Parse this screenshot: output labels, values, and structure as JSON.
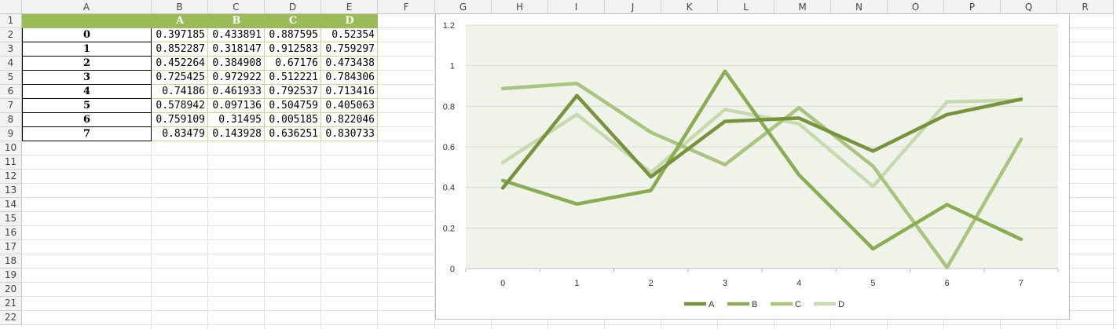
{
  "sheet": {
    "columns": [
      "A",
      "B",
      "C",
      "D",
      "E",
      "F",
      "G",
      "H",
      "I",
      "J",
      "K",
      "L",
      "M",
      "N",
      "O",
      "P",
      "Q",
      "R"
    ],
    "rows": [
      "1",
      "2",
      "3",
      "4",
      "5",
      "6",
      "7",
      "8",
      "9",
      "10",
      "11",
      "12",
      "13",
      "14",
      "15",
      "16",
      "17",
      "18",
      "19",
      "20",
      "21",
      "22"
    ],
    "table_headers": [
      "A",
      "B",
      "C",
      "D"
    ],
    "table_index": [
      "0",
      "1",
      "2",
      "3",
      "4",
      "5",
      "6",
      "7"
    ],
    "table_values": [
      [
        "0.397185",
        "0.433891",
        "0.887595",
        "0.52354"
      ],
      [
        "0.852287",
        "0.318147",
        "0.912583",
        "0.759297"
      ],
      [
        "0.452264",
        "0.384908",
        "0.67176",
        "0.473438"
      ],
      [
        "0.725425",
        "0.972922",
        "0.512221",
        "0.784306"
      ],
      [
        "0.74186",
        "0.461933",
        "0.792537",
        "0.713416"
      ],
      [
        "0.578942",
        "0.097136",
        "0.504759",
        "0.405063"
      ],
      [
        "0.759109",
        "0.31495",
        "0.005185",
        "0.822046"
      ],
      [
        "0.83479",
        "0.143928",
        "0.636251",
        "0.830733"
      ]
    ]
  },
  "chart_data": {
    "type": "line",
    "x": [
      0,
      1,
      2,
      3,
      4,
      5,
      6,
      7
    ],
    "ylim": [
      0,
      1.2
    ],
    "yticks": [
      "0",
      "0.2",
      "0.4",
      "0.6",
      "0.8",
      "1",
      "1.2"
    ],
    "grid": true,
    "legend": "bottom",
    "series": [
      {
        "name": "A",
        "color": "#77933c",
        "values": [
          0.397185,
          0.852287,
          0.452264,
          0.725425,
          0.74186,
          0.578942,
          0.759109,
          0.83479
        ]
      },
      {
        "name": "B",
        "color": "#8aac52",
        "values": [
          0.433891,
          0.318147,
          0.384908,
          0.972922,
          0.461933,
          0.097136,
          0.31495,
          0.143928
        ]
      },
      {
        "name": "C",
        "color": "#a9c47f",
        "values": [
          0.887595,
          0.912583,
          0.67176,
          0.512221,
          0.792537,
          0.504759,
          0.005185,
          0.636251
        ]
      },
      {
        "name": "D",
        "color": "#c8d9b0",
        "values": [
          0.52354,
          0.759297,
          0.473438,
          0.784306,
          0.713416,
          0.405063,
          0.822046,
          0.830733
        ]
      }
    ]
  }
}
